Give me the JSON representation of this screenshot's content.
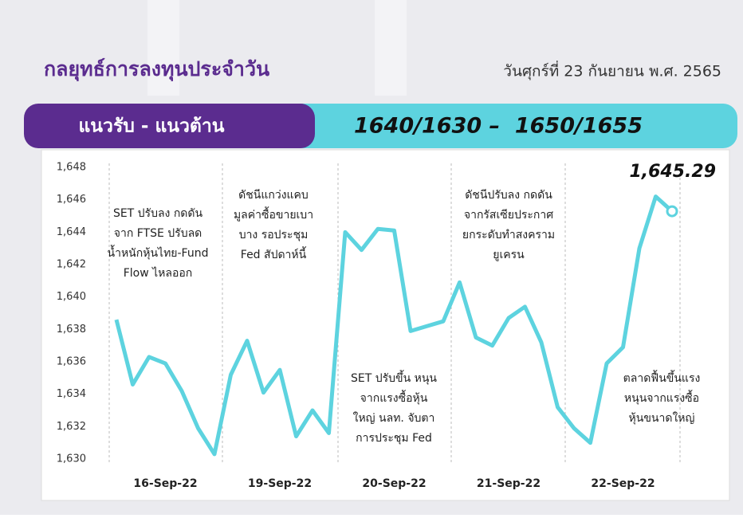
{
  "header": {
    "title": "กลยุทธ์การลงทุนประจำวัน",
    "date": "วันศุกร์ที่ 23 กันยายน พ.ศ. 2565"
  },
  "banner": {
    "label": "แนวรับ - แนวต้าน",
    "value": "1640/1630 –  1650/1655"
  },
  "chart_data": {
    "type": "line",
    "color": "#5dd3df",
    "categories": [
      null,
      null,
      null,
      "16-Sep-22",
      null,
      null,
      null,
      null,
      null,
      null,
      "19-Sep-22",
      null,
      null,
      null,
      null,
      null,
      null,
      "20-Sep-22",
      null,
      null,
      null,
      null,
      null,
      null,
      "21-Sep-22",
      null,
      null,
      null,
      null,
      null,
      null,
      "22-Sep-22",
      null,
      null,
      null
    ],
    "values": [
      1638.6,
      1634.6,
      1636.3,
      1635.9,
      1634.2,
      1631.9,
      1630.3,
      1635.2,
      1637.3,
      1634.1,
      1635.5,
      1631.4,
      1633.0,
      1631.6,
      1644.0,
      1642.9,
      1644.2,
      1644.1,
      1637.9,
      1638.2,
      1638.5,
      1640.9,
      1637.5,
      1637.0,
      1638.7,
      1639.4,
      1637.2,
      1633.2,
      1631.9,
      1631.0,
      1635.9,
      1636.9,
      1643.0,
      1646.2,
      1645.29
    ],
    "value_labels": [
      null,
      null,
      null,
      null,
      null,
      null,
      null,
      null,
      null,
      null,
      null,
      null,
      null,
      null,
      null,
      null,
      null,
      null,
      null,
      null,
      null,
      null,
      null,
      null,
      null,
      null,
      null,
      null,
      null,
      null,
      null,
      null,
      null,
      null,
      "1,645.29"
    ],
    "ylim": [
      1630,
      1648
    ],
    "yticks": [
      {
        "value": 1630,
        "label": "1,630"
      },
      {
        "value": 1632,
        "label": "1,632"
      },
      {
        "value": 1634,
        "label": "1,634"
      },
      {
        "value": 1636,
        "label": "1,636"
      },
      {
        "value": 1638,
        "label": "1,638"
      },
      {
        "value": 1640,
        "label": "1,640"
      },
      {
        "value": 1642,
        "label": "1,642"
      },
      {
        "value": 1644,
        "label": "1,644"
      },
      {
        "value": 1646,
        "label": "1,646"
      },
      {
        "value": 1648,
        "label": "1,648"
      }
    ],
    "annotations": [
      [
        "SET ปรับลง กดดัน",
        "จาก FTSE ปรับลด",
        "น้ำหนักหุ้นไทย-Fund",
        "Flow ไหลออก"
      ],
      [
        "ดัชนีแกว่งแคบ",
        "มูลค่าซื้อขายเบา",
        "บาง รอประชุม",
        "Fed สัปดาห์นี้"
      ],
      [
        "SET ปรับขึ้น หนุน",
        "จากแรงซื้อหุ้น",
        "ใหญ่ นลท. จับตา",
        "การประชุม Fed"
      ],
      [
        "ดัชนีปรับลง กดดัน",
        "จากรัสเซียประกาศ",
        "ยกระดับทำสงคราม",
        "ยูเครน"
      ],
      [
        "ตลาดฟื้นขึ้นแรง",
        "หนุนจากแรงซื้อ",
        "หุ้นขนาดใหญ่"
      ]
    ]
  }
}
